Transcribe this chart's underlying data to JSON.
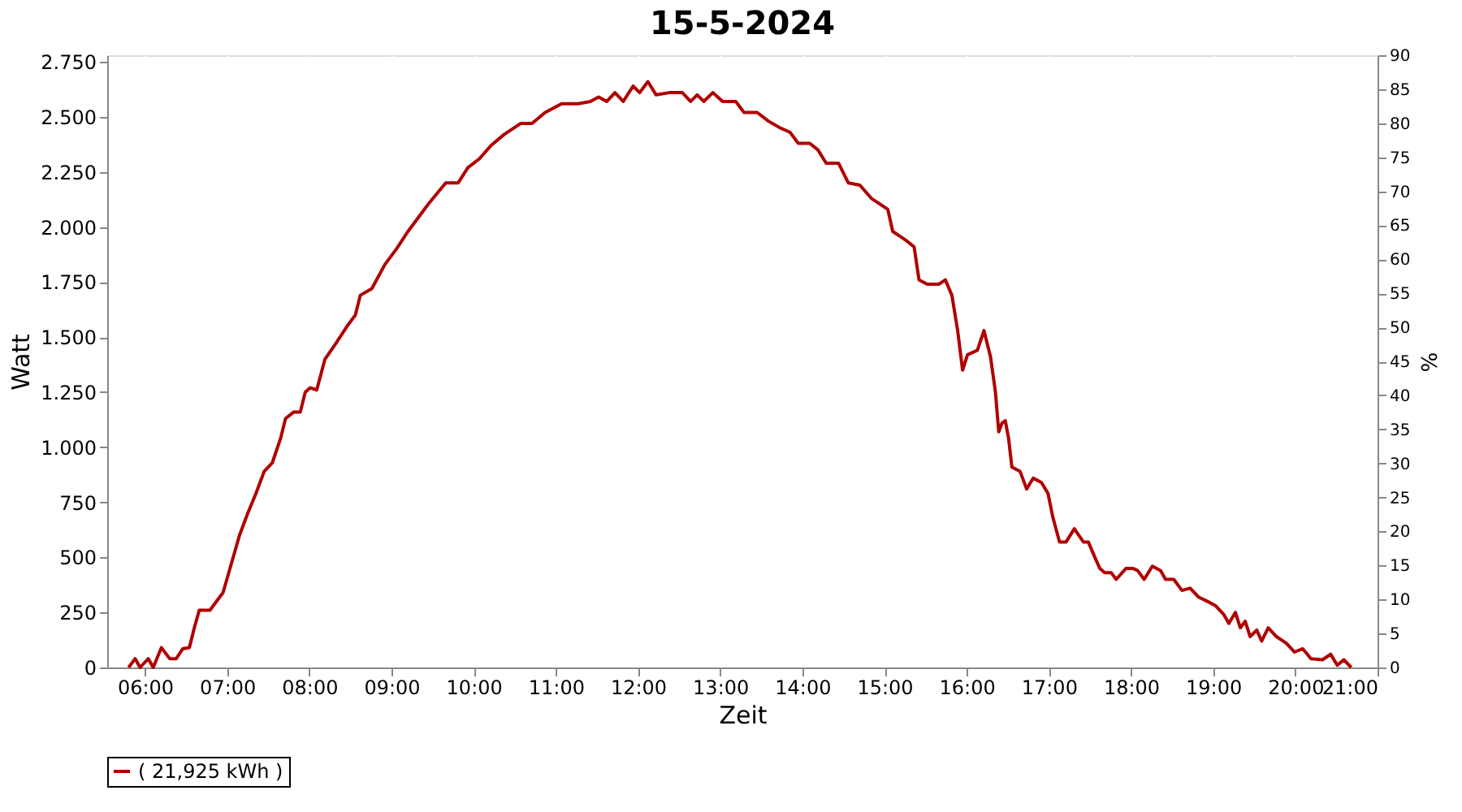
{
  "chart_data": {
    "type": "line",
    "title": "15-5-2024",
    "xlabel": "Zeit",
    "ylabel": "Watt",
    "y2label": "%",
    "xlim": [
      5.54,
      21.0
    ],
    "xticks": [
      {
        "value": 6,
        "label": "06:00"
      },
      {
        "value": 7,
        "label": "07:00"
      },
      {
        "value": 8,
        "label": "08:00"
      },
      {
        "value": 9,
        "label": "09:00"
      },
      {
        "value": 10,
        "label": "10:00"
      },
      {
        "value": 11,
        "label": "11:00"
      },
      {
        "value": 12,
        "label": "12:00"
      },
      {
        "value": 13,
        "label": "13:00"
      },
      {
        "value": 14,
        "label": "14:00"
      },
      {
        "value": 15,
        "label": "15:00"
      },
      {
        "value": 16,
        "label": "16:00"
      },
      {
        "value": 17,
        "label": "17:00"
      },
      {
        "value": 18,
        "label": "18:00"
      },
      {
        "value": 19,
        "label": "19:00"
      },
      {
        "value": 20,
        "label": "20:00"
      },
      {
        "value": 21,
        "label": "21:00"
      }
    ],
    "ylim": [
      0,
      2780
    ],
    "yticks": [
      0,
      250,
      500,
      750,
      {
        "value": 1000,
        "label": "1.000"
      },
      {
        "value": 1250,
        "label": "1.250"
      },
      {
        "value": 1500,
        "label": "1.500"
      },
      {
        "value": 1750,
        "label": "1.750"
      },
      {
        "value": 2000,
        "label": "2.000"
      },
      {
        "value": 2250,
        "label": "2.250"
      },
      {
        "value": 2500,
        "label": "2.500"
      },
      {
        "value": 2750,
        "label": "2.750"
      }
    ],
    "y2lim": [
      0,
      90
    ],
    "y2ticks": [
      0,
      5,
      10,
      15,
      20,
      25,
      30,
      35,
      40,
      45,
      50,
      55,
      60,
      65,
      70,
      75,
      80,
      85,
      90
    ],
    "grid": true,
    "legend": "bottom",
    "line_style": "solid",
    "marker": "none",
    "series": [
      {
        "name": "( 21,925 kWh )",
        "color": "#b00000",
        "x": [
          5.8,
          5.88,
          5.94,
          6.04,
          6.1,
          6.2,
          6.3,
          6.38,
          6.46,
          6.54,
          6.6,
          6.66,
          6.79,
          6.95,
          7.05,
          7.15,
          7.25,
          7.35,
          7.45,
          7.55,
          7.65,
          7.71,
          7.81,
          7.89,
          7.95,
          8.01,
          8.09,
          8.19,
          8.32,
          8.46,
          8.56,
          8.62,
          8.76,
          8.92,
          9.06,
          9.2,
          9.32,
          9.46,
          9.66,
          9.81,
          9.93,
          10.07,
          10.21,
          10.37,
          10.57,
          10.71,
          10.87,
          11.07,
          11.27,
          11.42,
          11.52,
          11.62,
          11.72,
          11.82,
          11.94,
          12.02,
          12.12,
          12.22,
          12.38,
          12.54,
          12.64,
          12.72,
          12.8,
          12.91,
          13.03,
          13.19,
          13.29,
          13.45,
          13.59,
          13.73,
          13.85,
          13.95,
          14.09,
          14.19,
          14.29,
          14.44,
          14.56,
          14.7,
          14.84,
          14.96,
          15.04,
          15.1,
          15.26,
          15.36,
          15.42,
          15.52,
          15.66,
          15.74,
          15.82,
          15.89,
          15.95,
          16.01,
          16.13,
          16.21,
          16.29,
          16.35,
          16.39,
          16.43,
          16.47,
          16.51,
          16.55,
          16.65,
          16.73,
          16.81,
          16.91,
          16.99,
          17.05,
          17.13,
          17.21,
          17.31,
          17.42,
          17.48,
          17.56,
          17.62,
          17.68,
          17.76,
          17.82,
          17.94,
          18.02,
          18.08,
          18.16,
          18.26,
          18.36,
          18.42,
          18.52,
          18.62,
          18.72,
          18.82,
          18.93,
          19.03,
          19.13,
          19.19,
          19.27,
          19.33,
          19.39,
          19.45,
          19.53,
          19.59,
          19.67,
          19.77,
          19.89,
          19.99,
          20.09,
          20.19,
          20.33,
          20.43,
          20.51,
          20.59,
          20.68
        ],
        "values": [
          0,
          40,
          0,
          40,
          0,
          90,
          40,
          40,
          85,
          90,
          180,
          260,
          260,
          340,
          470,
          600,
          700,
          790,
          890,
          930,
          1040,
          1130,
          1160,
          1160,
          1250,
          1270,
          1260,
          1400,
          1470,
          1550,
          1600,
          1690,
          1720,
          1830,
          1900,
          1980,
          2040,
          2110,
          2200,
          2200,
          2270,
          2310,
          2370,
          2420,
          2470,
          2470,
          2520,
          2560,
          2560,
          2570,
          2590,
          2570,
          2610,
          2570,
          2640,
          2610,
          2660,
          2600,
          2610,
          2610,
          2570,
          2600,
          2570,
          2610,
          2570,
          2570,
          2520,
          2520,
          2480,
          2450,
          2430,
          2380,
          2380,
          2350,
          2290,
          2290,
          2200,
          2190,
          2130,
          2100,
          2080,
          1980,
          1940,
          1910,
          1760,
          1740,
          1740,
          1760,
          1690,
          1530,
          1350,
          1420,
          1440,
          1530,
          1410,
          1250,
          1070,
          1110,
          1120,
          1040,
          910,
          890,
          810,
          860,
          840,
          790,
          680,
          570,
          570,
          630,
          570,
          570,
          500,
          450,
          430,
          430,
          400,
          450,
          450,
          440,
          400,
          460,
          440,
          400,
          400,
          350,
          360,
          320,
          300,
          280,
          240,
          200,
          250,
          180,
          210,
          140,
          170,
          120,
          180,
          140,
          110,
          70,
          85,
          40,
          35,
          60,
          10,
          35,
          0
        ]
      }
    ]
  }
}
